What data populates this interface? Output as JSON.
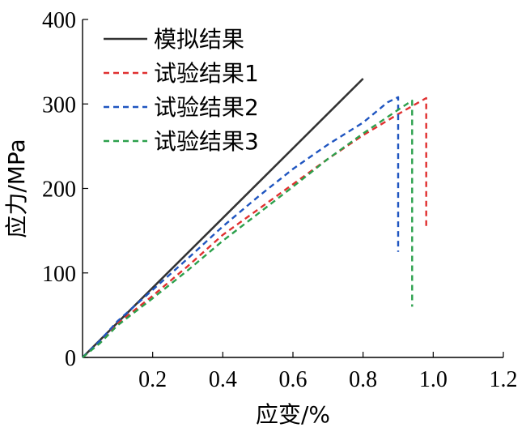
{
  "chart_data": {
    "type": "line",
    "title": "",
    "xlabel": "应变/%",
    "ylabel": "应力/MPa",
    "xlim": [
      0,
      1.2
    ],
    "ylim": [
      0,
      400
    ],
    "x_ticks": [
      {
        "value": 0.2,
        "label": "0.2"
      },
      {
        "value": 0.4,
        "label": "0.4"
      },
      {
        "value": 0.6,
        "label": "0.6"
      },
      {
        "value": 0.8,
        "label": "0.8"
      },
      {
        "value": 1.0,
        "label": "1.0"
      },
      {
        "value": 1.2,
        "label": "1.2"
      }
    ],
    "y_ticks": [
      {
        "value": 0,
        "label": "0"
      },
      {
        "value": 100,
        "label": "100"
      },
      {
        "value": 200,
        "label": "200"
      },
      {
        "value": 300,
        "label": "300"
      },
      {
        "value": 400,
        "label": "400"
      }
    ],
    "grid": false,
    "legend_position": "top-left",
    "series": [
      {
        "name": "模拟结果",
        "color": "#333333",
        "dash": "solid",
        "points": [
          [
            0,
            0
          ],
          [
            0.8,
            330
          ]
        ]
      },
      {
        "name": "试验结果1",
        "color": "#e03030",
        "dash": "dashed",
        "points": [
          [
            0,
            0
          ],
          [
            0.05,
            18
          ],
          [
            0.1,
            40
          ],
          [
            0.2,
            73
          ],
          [
            0.3,
            108
          ],
          [
            0.4,
            145
          ],
          [
            0.5,
            175
          ],
          [
            0.6,
            205
          ],
          [
            0.7,
            235
          ],
          [
            0.8,
            263
          ],
          [
            0.9,
            288
          ],
          [
            0.98,
            307
          ],
          [
            0.98,
            155
          ]
        ]
      },
      {
        "name": "试验结果2",
        "color": "#1f55c0",
        "dash": "dashed",
        "points": [
          [
            0,
            0
          ],
          [
            0.05,
            20
          ],
          [
            0.1,
            43
          ],
          [
            0.2,
            80
          ],
          [
            0.3,
            117
          ],
          [
            0.4,
            155
          ],
          [
            0.5,
            190
          ],
          [
            0.6,
            223
          ],
          [
            0.7,
            252
          ],
          [
            0.8,
            278
          ],
          [
            0.87,
            302
          ],
          [
            0.9,
            308
          ],
          [
            0.9,
            125
          ]
        ]
      },
      {
        "name": "试验结果3",
        "color": "#2ca04c",
        "dash": "dashed",
        "points": [
          [
            0,
            0
          ],
          [
            0.05,
            17
          ],
          [
            0.1,
            38
          ],
          [
            0.2,
            70
          ],
          [
            0.3,
            103
          ],
          [
            0.4,
            138
          ],
          [
            0.5,
            170
          ],
          [
            0.6,
            202
          ],
          [
            0.7,
            235
          ],
          [
            0.8,
            265
          ],
          [
            0.9,
            293
          ],
          [
            0.94,
            304
          ],
          [
            0.94,
            60
          ]
        ]
      }
    ]
  }
}
